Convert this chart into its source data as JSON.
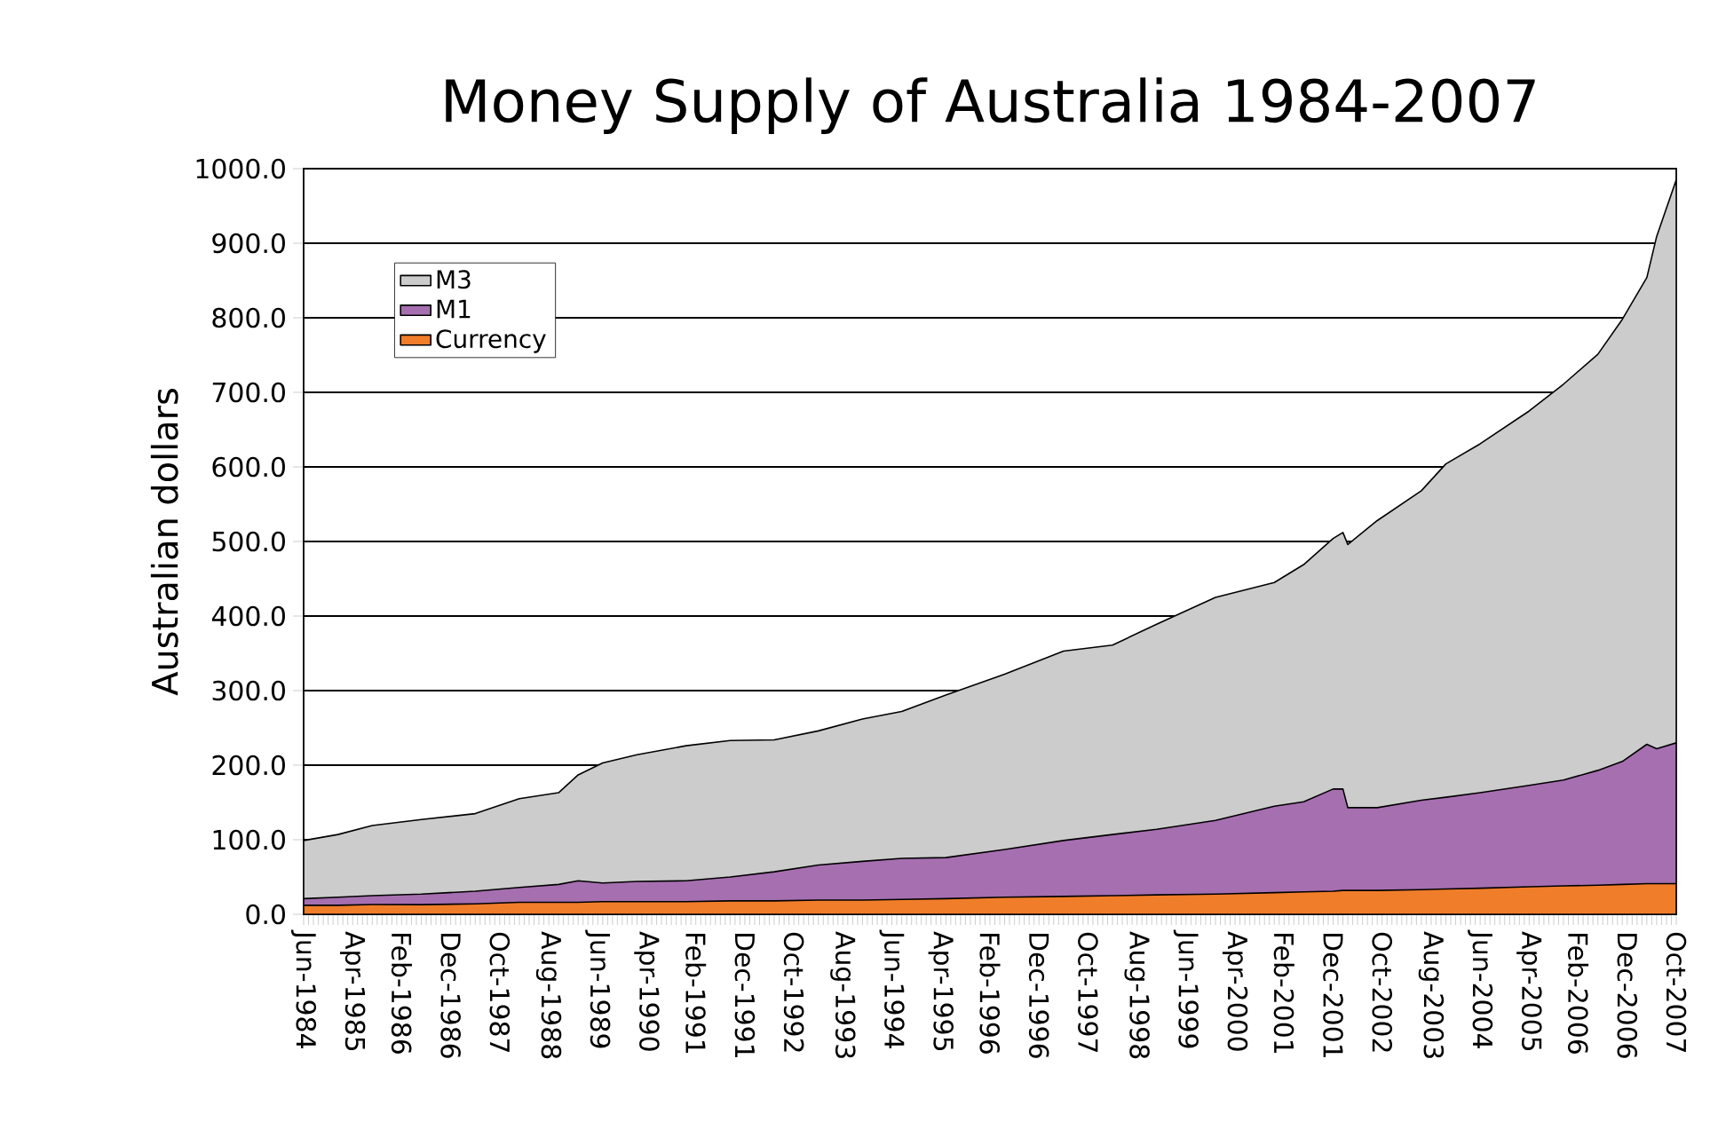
{
  "chart_data": {
    "type": "area",
    "title": "Money Supply of Australia 1984-2007",
    "ylabel": "Australian dollars",
    "x": [
      "1984-06",
      "1985-01",
      "1985-08",
      "1986-06",
      "1987-05",
      "1988-02",
      "1988-10",
      "1989-02",
      "1989-07",
      "1990-02",
      "1990-12",
      "1991-09",
      "1992-06",
      "1993-03",
      "1993-12",
      "1994-08",
      "1995-05",
      "1996-05",
      "1997-05",
      "1998-03",
      "1998-12",
      "1999-12",
      "2000-12",
      "2001-06",
      "2001-12",
      "2002-02",
      "2002-03",
      "2002-09",
      "2003-06",
      "2003-11",
      "2004-06",
      "2005-04",
      "2005-11",
      "2006-06",
      "2006-11",
      "2007-04",
      "2007-06",
      "2007-10"
    ],
    "series": [
      {
        "name": "M3",
        "color": "#cccccc",
        "values": [
          99,
          107,
          119,
          127,
          135,
          155,
          163,
          187,
          203,
          214,
          226,
          233,
          234,
          246,
          262,
          272,
          294,
          322,
          353,
          361,
          389,
          425,
          445,
          469,
          504,
          512,
          496,
          528,
          568,
          604,
          631,
          675,
          711,
          751,
          798,
          854,
          909,
          985
        ]
      },
      {
        "name": "M1",
        "color": "#a66fb0",
        "values": [
          21,
          23,
          25,
          27,
          31,
          36,
          40,
          45,
          42,
          44,
          45,
          50,
          57,
          66,
          71,
          75,
          76,
          87,
          99,
          107,
          114,
          126,
          145,
          151,
          168,
          168,
          143,
          143,
          153,
          157,
          163,
          173,
          180,
          193,
          205,
          228,
          222,
          230
        ]
      },
      {
        "name": "Currency",
        "color": "#f07d2a",
        "values": [
          12,
          12,
          13,
          13,
          14,
          16,
          16,
          16,
          17,
          17,
          17,
          18,
          18,
          19,
          19,
          20,
          21,
          23,
          24,
          25,
          26,
          27,
          29,
          30,
          31,
          32,
          32,
          32,
          33,
          34,
          35,
          37,
          38,
          39,
          40,
          41,
          41,
          41
        ]
      }
    ],
    "xlim": [
      "1984-06",
      "2007-10"
    ],
    "xticks": [
      {
        "value": "1984-06",
        "label": "Jun-1984"
      },
      {
        "value": "1985-04",
        "label": "Apr-1985"
      },
      {
        "value": "1986-02",
        "label": "Feb-1986"
      },
      {
        "value": "1986-12",
        "label": "Dec-1986"
      },
      {
        "value": "1987-10",
        "label": "Oct-1987"
      },
      {
        "value": "1988-08",
        "label": "Aug-1988"
      },
      {
        "value": "1989-06",
        "label": "Jun-1989"
      },
      {
        "value": "1990-04",
        "label": "Apr-1990"
      },
      {
        "value": "1991-02",
        "label": "Feb-1991"
      },
      {
        "value": "1991-12",
        "label": "Dec-1991"
      },
      {
        "value": "1992-10",
        "label": "Oct-1992"
      },
      {
        "value": "1993-08",
        "label": "Aug-1993"
      },
      {
        "value": "1994-06",
        "label": "Jun-1994"
      },
      {
        "value": "1995-04",
        "label": "Apr-1995"
      },
      {
        "value": "1996-02",
        "label": "Feb-1996"
      },
      {
        "value": "1996-12",
        "label": "Dec-1996"
      },
      {
        "value": "1997-10",
        "label": "Oct-1997"
      },
      {
        "value": "1998-08",
        "label": "Aug-1998"
      },
      {
        "value": "1999-06",
        "label": "Jun-1999"
      },
      {
        "value": "2000-04",
        "label": "Apr-2000"
      },
      {
        "value": "2001-02",
        "label": "Feb-2001"
      },
      {
        "value": "2001-12",
        "label": "Dec-2001"
      },
      {
        "value": "2002-10",
        "label": "Oct-2002"
      },
      {
        "value": "2003-08",
        "label": "Aug-2003"
      },
      {
        "value": "2004-06",
        "label": "Jun-2004"
      },
      {
        "value": "2005-04",
        "label": "Apr-2005"
      },
      {
        "value": "2006-02",
        "label": "Feb-2006"
      },
      {
        "value": "2006-12",
        "label": "Dec-2006"
      },
      {
        "value": "2007-10",
        "label": "Oct-2007"
      }
    ],
    "ylim": [
      0,
      1000
    ],
    "yticks": [
      {
        "value": 0,
        "label": "0.0"
      },
      {
        "value": 100,
        "label": "100.0"
      },
      {
        "value": 200,
        "label": "200.0"
      },
      {
        "value": 300,
        "label": "300.0"
      },
      {
        "value": 400,
        "label": "400.0"
      },
      {
        "value": 500,
        "label": "500.0"
      },
      {
        "value": 600,
        "label": "600.0"
      },
      {
        "value": 700,
        "label": "700.0"
      },
      {
        "value": 800,
        "label": "800.0"
      },
      {
        "value": 900,
        "label": "900.0"
      },
      {
        "value": 1000,
        "label": "1000.0"
      }
    ],
    "grid": "y",
    "legend": "top left"
  }
}
